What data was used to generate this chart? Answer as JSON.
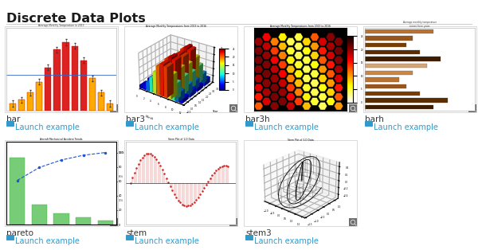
{
  "title": "Discrete Data Plots",
  "title_color": "#1a1a1a",
  "bg_color": "#ffffff",
  "separator_color": "#cccccc",
  "label_color": "#333333",
  "link_color": "#3399cc",
  "icon_color": "#3399cc",
  "items": [
    {
      "name": "bar",
      "row": 0,
      "col": 0
    },
    {
      "name": "bar3",
      "row": 0,
      "col": 1
    },
    {
      "name": "bar3h",
      "row": 0,
      "col": 2
    },
    {
      "name": "barh",
      "row": 0,
      "col": 3
    },
    {
      "name": "pareto",
      "row": 1,
      "col": 0
    },
    {
      "name": "stem",
      "row": 1,
      "col": 1
    },
    {
      "name": "stem3",
      "row": 1,
      "col": 2
    }
  ],
  "launch_text": "Launch example",
  "title_fontsize": 11.5,
  "label_fontsize": 7.5,
  "link_fontsize": 7.0
}
